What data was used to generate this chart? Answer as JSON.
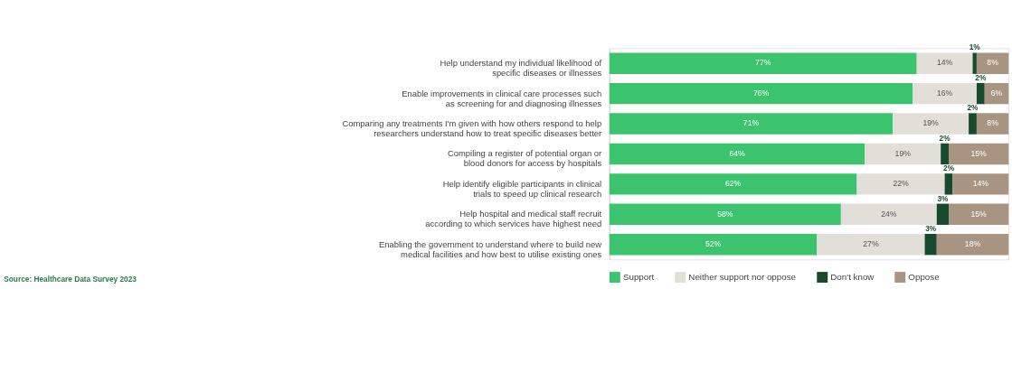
{
  "chart_data": {
    "type": "bar",
    "orientation": "horizontal",
    "stacked": true,
    "legend": "bottom",
    "categories": [
      "Help understand my individual likelihood of specific diseases or illnesses",
      "Enable improvements in clinical care processes such as screening for and diagnosing illnesses",
      "Comparing any treatments I'm given with how others respond to help researchers understand how to treat specific diseases better",
      "Compiling a register of potential organ or blood donors for access by hospitals",
      "Help identify eligible participants in clinical trials to speed up clinical research",
      "Help hospital and medical staff recruit according to which services have highest need",
      "Enabling the government to understand where to build new medical facilities and how best to utilise existing ones"
    ],
    "series": [
      {
        "name": "Support",
        "color": "#3cc36e",
        "values": [
          77,
          76,
          71,
          64,
          62,
          58,
          52
        ],
        "value_labels": [
          "77%",
          "76%",
          "71%",
          "64%",
          "62%",
          "58%",
          "52%"
        ]
      },
      {
        "name": "Neither support nor oppose",
        "color": "#e2dfd8",
        "values": [
          14,
          16,
          19,
          19,
          22,
          24,
          27
        ],
        "value_labels": [
          "14%",
          "16%",
          "19%",
          "19%",
          "22%",
          "24%",
          "27%"
        ]
      },
      {
        "name": "Don't know",
        "color": "#174a2c",
        "values": [
          1,
          2,
          2,
          2,
          2,
          3,
          3
        ],
        "value_labels": [
          "1%",
          "2%",
          "2%",
          "2%",
          "2%",
          "3%",
          "3%"
        ]
      },
      {
        "name": "Oppose",
        "color": "#a89480",
        "values": [
          8,
          6,
          8,
          15,
          14,
          15,
          18
        ],
        "value_labels": [
          "8%",
          "6%",
          "8%",
          "15%",
          "14%",
          "15%",
          "18%"
        ]
      }
    ],
    "annotations": [
      "Source: Healthcare Data Survey 2023"
    ]
  }
}
